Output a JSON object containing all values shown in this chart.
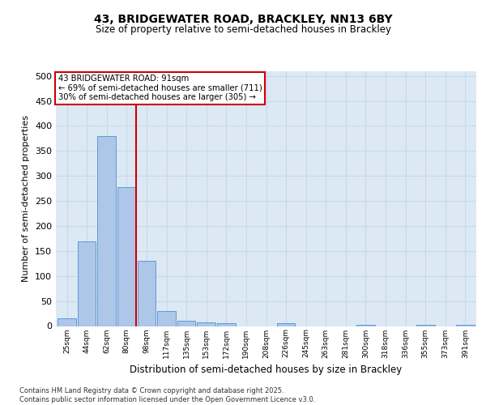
{
  "title_line1": "43, BRIDGEWATER ROAD, BRACKLEY, NN13 6BY",
  "title_line2": "Size of property relative to semi-detached houses in Brackley",
  "xlabel": "Distribution of semi-detached houses by size in Brackley",
  "ylabel": "Number of semi-detached properties",
  "bins": [
    "25sqm",
    "44sqm",
    "62sqm",
    "80sqm",
    "98sqm",
    "117sqm",
    "135sqm",
    "153sqm",
    "172sqm",
    "190sqm",
    "208sqm",
    "226sqm",
    "245sqm",
    "263sqm",
    "281sqm",
    "300sqm",
    "318sqm",
    "336sqm",
    "355sqm",
    "373sqm",
    "391sqm"
  ],
  "values": [
    15,
    170,
    380,
    278,
    130,
    30,
    10,
    7,
    5,
    0,
    0,
    5,
    0,
    0,
    0,
    3,
    0,
    0,
    3,
    0,
    3
  ],
  "bar_color": "#aec6e8",
  "bar_edge_color": "#5b9bd5",
  "grid_color": "#c8d8e8",
  "background_color": "#dce9f5",
  "property_bin_index": 3,
  "annotation_box_color": "#ffffff",
  "annotation_box_edge": "#cc0000",
  "vline_color": "#cc0000",
  "ylim": [
    0,
    510
  ],
  "yticks": [
    0,
    50,
    100,
    150,
    200,
    250,
    300,
    350,
    400,
    450,
    500
  ],
  "footnote1": "Contains HM Land Registry data © Crown copyright and database right 2025.",
  "footnote2": "Contains public sector information licensed under the Open Government Licence v3.0."
}
